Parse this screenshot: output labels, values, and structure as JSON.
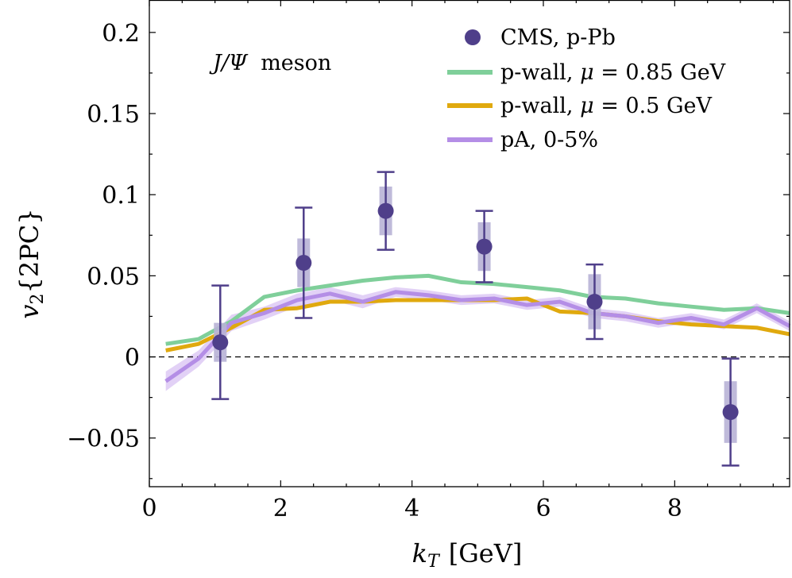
{
  "chart_data": {
    "type": "line",
    "title": "",
    "annotation": {
      "italic": "J/Ψ",
      "rest": "meson"
    },
    "xlabel": {
      "symbol": "k",
      "sub": "T",
      "unit": "[GeV]"
    },
    "ylabel": {
      "symbol": "v",
      "sub": "2",
      "rest": "{2PC}"
    },
    "xlim": [
      0,
      9.75
    ],
    "ylim": [
      -0.08,
      0.22
    ],
    "xticks": [
      0,
      2,
      4,
      6,
      8
    ],
    "xtick_labels": [
      "0",
      "2",
      "4",
      "6",
      "8"
    ],
    "yticks": [
      -0.05,
      0,
      0.05,
      0.1,
      0.15,
      0.2
    ],
    "ytick_labels": [
      "−0.05",
      "0",
      "0.05",
      "0.1",
      "0.15",
      "0.2"
    ],
    "zero_line": true,
    "grid": false,
    "legend_position": "top-right",
    "colors": {
      "cms": "#4f3f8a",
      "cms_sys": "#b8b2d6",
      "pwall085": "#7fcf9a",
      "pwall05": "#e0a90e",
      "pa": "#b48ee6",
      "pa_band": "#ddc9f5"
    },
    "series": [
      {
        "name": "CMS, p-Pb",
        "kind": "points",
        "x": [
          1.08,
          2.35,
          3.6,
          5.1,
          6.78,
          8.85
        ],
        "y": [
          0.009,
          0.058,
          0.09,
          0.068,
          0.034,
          -0.034
        ],
        "stat_err": [
          0.035,
          0.034,
          0.024,
          0.022,
          0.023,
          0.033
        ],
        "sys_err": [
          0.012,
          0.015,
          0.015,
          0.015,
          0.017,
          0.019
        ]
      },
      {
        "name": "p-wall, μ = 0.85 GeV",
        "legend_parts": {
          "pre": "p-wall,",
          "italic": "μ",
          "post": "= 0.85 GeV"
        },
        "kind": "line",
        "x": [
          0.25,
          0.75,
          1.25,
          1.75,
          2.25,
          2.75,
          3.25,
          3.75,
          4.25,
          4.75,
          5.25,
          5.75,
          6.25,
          6.75,
          7.25,
          7.75,
          8.25,
          8.75,
          9.25,
          9.75
        ],
        "y": [
          0.008,
          0.011,
          0.022,
          0.037,
          0.041,
          0.044,
          0.047,
          0.049,
          0.05,
          0.046,
          0.045,
          0.043,
          0.041,
          0.037,
          0.036,
          0.033,
          0.031,
          0.029,
          0.03,
          0.027
        ]
      },
      {
        "name": "p-wall, μ = 0.5 GeV",
        "legend_parts": {
          "pre": "p-wall,",
          "italic": "μ",
          "post": "= 0.5 GeV"
        },
        "kind": "line",
        "x": [
          0.25,
          0.75,
          1.25,
          1.75,
          2.25,
          2.75,
          3.25,
          3.75,
          4.25,
          4.75,
          5.25,
          5.75,
          6.25,
          6.75,
          7.25,
          7.75,
          8.25,
          8.75,
          9.25,
          9.75
        ],
        "y": [
          0.004,
          0.008,
          0.018,
          0.029,
          0.03,
          0.034,
          0.034,
          0.035,
          0.035,
          0.035,
          0.035,
          0.036,
          0.028,
          0.027,
          0.025,
          0.022,
          0.02,
          0.019,
          0.018,
          0.014
        ]
      },
      {
        "name": "pA, 0-5%",
        "kind": "line_band",
        "x": [
          0.25,
          0.75,
          1.25,
          1.75,
          2.25,
          2.75,
          3.25,
          3.75,
          4.25,
          4.75,
          5.25,
          5.75,
          6.25,
          6.75,
          7.25,
          7.75,
          8.25,
          8.75,
          9.25,
          9.75
        ],
        "y": [
          -0.015,
          -0.001,
          0.021,
          0.027,
          0.035,
          0.039,
          0.034,
          0.04,
          0.038,
          0.035,
          0.036,
          0.032,
          0.034,
          0.027,
          0.025,
          0.021,
          0.024,
          0.02,
          0.03,
          0.019
        ],
        "band": [
          0.006,
          0.005,
          0.005,
          0.004,
          0.004,
          0.004,
          0.004,
          0.003,
          0.003,
          0.003,
          0.003,
          0.003,
          0.003,
          0.003,
          0.003,
          0.003,
          0.003,
          0.003,
          0.003,
          0.003
        ]
      }
    ]
  }
}
